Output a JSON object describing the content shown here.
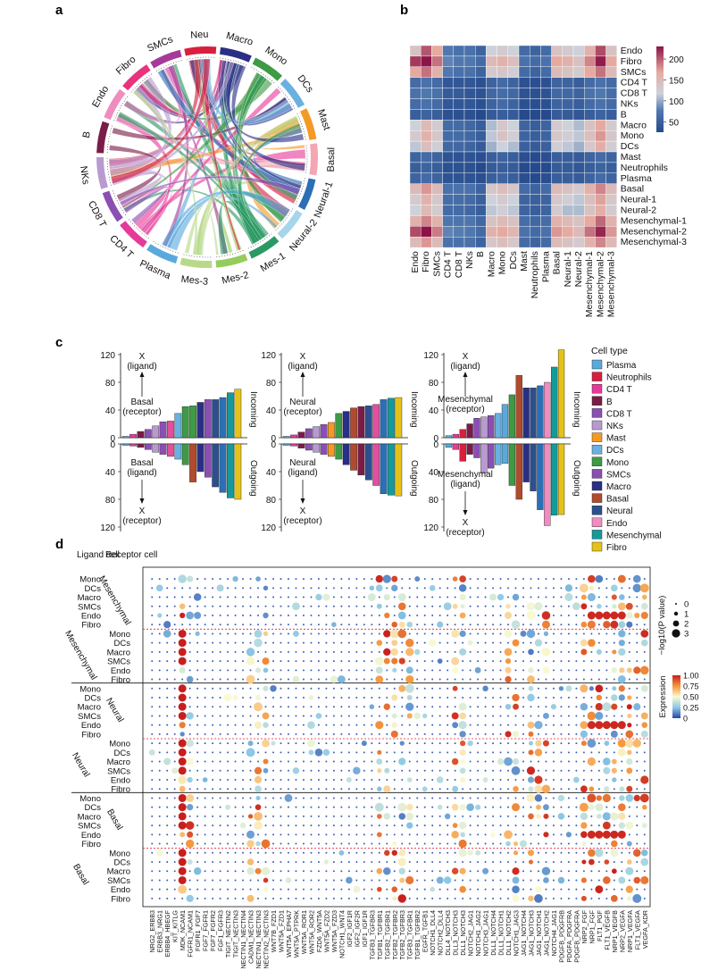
{
  "panels": {
    "a": "a",
    "b": "b",
    "c": "c",
    "d": "d"
  },
  "chart_data": [
    {
      "panel": "a",
      "type": "chord",
      "sectors": [
        "Neu",
        "Macro",
        "Mono",
        "DCs",
        "Mast",
        "Basal",
        "Neural-1",
        "Neural-2",
        "Mes-1",
        "Mes-2",
        "Mes-3",
        "Plasma",
        "CD4 T",
        "CD8 T",
        "NKs",
        "B",
        "Endo",
        "Fibro",
        "SMCs"
      ],
      "colors": [
        "#d81f3f",
        "#2a2f86",
        "#3d9a45",
        "#6ab0e0",
        "#f39a26",
        "#f4a6b2",
        "#2c6fb4",
        "#a6d5ec",
        "#2a9a62",
        "#96cc5c",
        "#b8d98a",
        "#5aa9dc",
        "#e63a9a",
        "#8a4fb3",
        "#b99ad0",
        "#7b1b48",
        "#ef8cc0",
        "#e9337c",
        "#a63a9a"
      ]
    },
    {
      "panel": "b",
      "type": "heatmap",
      "rows": [
        "Endo",
        "Fibro",
        "SMCs",
        "CD4 T",
        "CD8 T",
        "NKs",
        "B",
        "Macro",
        "Mono",
        "DCs",
        "Mast",
        "Neutrophils",
        "Plasma",
        "Basal",
        "Neural-1",
        "Neural-2",
        "Mesenchymal-1",
        "Mesenchymal-2",
        "Mesenchymal-3"
      ],
      "cols": [
        "Endo",
        "Fibro",
        "SMCs",
        "CD4 T",
        "CD8 T",
        "NKs",
        "B",
        "Macro",
        "Mono",
        "DCs",
        "Mast",
        "Neutrophils",
        "Plasma",
        "Basal",
        "Neural-1",
        "Neural-2",
        "Mesenchymal-1",
        "Mesenchymal-2",
        "Mesenchymal-3"
      ],
      "values": [
        [
          120,
          195,
          150,
          60,
          55,
          55,
          45,
          100,
          110,
          100,
          50,
          45,
          50,
          120,
          110,
          100,
          140,
          200,
          120
        ],
        [
          210,
          230,
          180,
          65,
          60,
          60,
          50,
          130,
          140,
          125,
          55,
          50,
          55,
          150,
          140,
          120,
          170,
          225,
          150
        ],
        [
          150,
          180,
          140,
          60,
          55,
          55,
          45,
          110,
          115,
          105,
          50,
          45,
          50,
          130,
          120,
          110,
          150,
          180,
          130
        ],
        [
          50,
          55,
          50,
          35,
          35,
          35,
          30,
          45,
          50,
          45,
          30,
          28,
          30,
          45,
          45,
          40,
          50,
          55,
          50
        ],
        [
          55,
          60,
          55,
          38,
          38,
          35,
          32,
          48,
          52,
          48,
          32,
          30,
          32,
          48,
          48,
          45,
          55,
          60,
          52
        ],
        [
          50,
          55,
          50,
          35,
          35,
          35,
          30,
          45,
          50,
          45,
          30,
          28,
          30,
          45,
          45,
          40,
          50,
          55,
          50
        ],
        [
          40,
          45,
          40,
          30,
          30,
          30,
          25,
          38,
          40,
          38,
          25,
          25,
          25,
          38,
          38,
          35,
          40,
          45,
          40
        ],
        [
          100,
          130,
          110,
          50,
          50,
          48,
          40,
          90,
          115,
          100,
          45,
          40,
          45,
          110,
          100,
          90,
          120,
          150,
          110
        ],
        [
          110,
          140,
          115,
          50,
          50,
          48,
          40,
          95,
          120,
          105,
          45,
          40,
          45,
          115,
          105,
          95,
          125,
          160,
          115
        ],
        [
          95,
          125,
          105,
          48,
          48,
          45,
          38,
          85,
          100,
          90,
          42,
          38,
          42,
          105,
          95,
          85,
          115,
          145,
          105
        ],
        [
          45,
          50,
          45,
          32,
          32,
          32,
          28,
          40,
          45,
          40,
          28,
          25,
          28,
          40,
          40,
          38,
          45,
          50,
          45
        ],
        [
          40,
          45,
          40,
          30,
          30,
          30,
          25,
          38,
          40,
          38,
          25,
          25,
          25,
          38,
          38,
          35,
          40,
          45,
          40
        ],
        [
          45,
          50,
          45,
          32,
          32,
          32,
          28,
          40,
          45,
          40,
          28,
          25,
          28,
          40,
          40,
          38,
          45,
          50,
          45
        ],
        [
          130,
          160,
          130,
          55,
          55,
          55,
          45,
          115,
          125,
          115,
          50,
          45,
          50,
          130,
          120,
          110,
          140,
          170,
          130
        ],
        [
          110,
          140,
          115,
          52,
          52,
          50,
          42,
          100,
          110,
          100,
          45,
          42,
          45,
          115,
          105,
          95,
          125,
          155,
          115
        ],
        [
          100,
          130,
          110,
          50,
          50,
          48,
          40,
          95,
          105,
          95,
          45,
          40,
          45,
          110,
          90,
          90,
          120,
          145,
          110
        ],
        [
          140,
          170,
          140,
          58,
          58,
          58,
          48,
          120,
          130,
          120,
          52,
          48,
          52,
          140,
          130,
          120,
          150,
          185,
          140
        ],
        [
          200,
          230,
          175,
          65,
          62,
          60,
          50,
          140,
          150,
          135,
          55,
          50,
          55,
          160,
          150,
          130,
          180,
          220,
          160
        ],
        [
          130,
          160,
          130,
          55,
          55,
          55,
          45,
          115,
          125,
          115,
          50,
          45,
          50,
          130,
          120,
          110,
          140,
          170,
          130
        ]
      ],
      "colorbar_ticks": [
        "200",
        "150",
        "100",
        "50"
      ],
      "range": [
        25,
        230
      ]
    },
    {
      "panel": "c",
      "type": "bar",
      "subplots": [
        {
          "name": "Basal",
          "incoming": [
            2,
            5,
            9,
            12,
            17,
            23,
            24,
            35,
            45,
            46,
            51,
            55,
            55,
            58,
            65,
            70
          ],
          "incoming_colors": [
            "#5aa9dc",
            "#e63a9a",
            "#7b1b48",
            "#8a4fb3",
            "#b99ad0",
            "#8a4fb3",
            "#e0509e",
            "#6ab0e0",
            "#3d9a45",
            "#3d9a45",
            "#2a2f86",
            "#8a4fb3",
            "#2c4f8f",
            "#2c6fb4",
            "#159a9a",
            "#e4c21a"
          ],
          "outgoing": [
            2,
            3,
            5,
            8,
            12,
            15,
            18,
            22,
            30,
            55,
            40,
            48,
            62,
            70,
            78,
            80
          ],
          "outgoing_colors": [
            "#5aa9dc",
            "#e63a9a",
            "#7b1b48",
            "#8a4fb3",
            "#b99ad0",
            "#8a4fb3",
            "#e0509e",
            "#6ab0e0",
            "#3d9a45",
            "#b04b2f",
            "#2a2f86",
            "#8a4fb3",
            "#2c4f8f",
            "#2c6fb4",
            "#159a9a",
            "#e4c21a"
          ]
        },
        {
          "name": "Neural",
          "incoming": [
            2,
            4,
            8,
            13,
            16,
            19,
            22,
            35,
            38,
            43,
            45,
            46,
            48,
            55,
            57,
            58
          ],
          "incoming_colors": [
            "#5aa9dc",
            "#e63a9a",
            "#7b1b48",
            "#8a4fb3",
            "#b99ad0",
            "#8a4fb3",
            "#f39a26",
            "#3d9a45",
            "#2a2f86",
            "#b04b2f",
            "#7b1b48",
            "#2c4f8f",
            "#e0509e",
            "#2c6fb4",
            "#159a9a",
            "#e4c21a"
          ],
          "outgoing": [
            2,
            3,
            6,
            9,
            12,
            15,
            18,
            22,
            30,
            38,
            45,
            52,
            60,
            72,
            74,
            75
          ],
          "outgoing_colors": [
            "#5aa9dc",
            "#e63a9a",
            "#7b1b48",
            "#8a4fb3",
            "#b99ad0",
            "#8a4fb3",
            "#f39a26",
            "#3d9a45",
            "#2a2f86",
            "#b04b2f",
            "#7b1b48",
            "#2c4f8f",
            "#e0509e",
            "#2c6fb4",
            "#159a9a",
            "#e4c21a"
          ]
        },
        {
          "name": "Mesenchymal",
          "incoming": [
            3,
            5,
            12,
            20,
            28,
            30,
            32,
            35,
            48,
            62,
            90,
            72,
            72,
            75,
            80,
            102,
            127
          ],
          "incoming_colors": [
            "#5aa9dc",
            "#e63a9a",
            "#d81f3f",
            "#7b1b48",
            "#8a4fb3",
            "#b99ad0",
            "#8a4fb3",
            "#6ab0e0",
            "#5aa9dc",
            "#3d9a45",
            "#b04b2f",
            "#2a2f86",
            "#2c4f8f",
            "#2c6fb4",
            "#ef8cc0",
            "#159a9a",
            "#e4c21a"
          ],
          "outgoing": [
            5,
            8,
            25,
            15,
            20,
            42,
            35,
            30,
            28,
            60,
            80,
            55,
            68,
            95,
            118,
            103,
            102
          ],
          "outgoing_colors": [
            "#5aa9dc",
            "#e63a9a",
            "#d81f3f",
            "#7b1b48",
            "#8a4fb3",
            "#b99ad0",
            "#8a4fb3",
            "#6ab0e0",
            "#5aa9dc",
            "#3d9a45",
            "#b04b2f",
            "#2a2f86",
            "#2c4f8f",
            "#2c6fb4",
            "#ef8cc0",
            "#159a9a",
            "#e4c21a"
          ]
        }
      ],
      "y_ticks_incoming": [
        "120",
        "80",
        "40",
        "0"
      ],
      "y_ticks_outgoing": [
        "0",
        "40",
        "80",
        "120"
      ],
      "incoming_label": "Incoming",
      "outgoing_label": "Outgoing",
      "ann_x_ligand": "X",
      "ann_ligand": "(ligand)",
      "ann_receptor": "(receptor)",
      "ann_basal": "Basal",
      "ann_neural": "Neural",
      "ann_mesenchymal": "Mesenchymal",
      "ann_x_receptor": "X",
      "ann_ligand2": "(ligand)",
      "legend_title": "Cell type",
      "legend": [
        {
          "name": "Plasma",
          "color": "#5aa9dc"
        },
        {
          "name": "Neutrophils",
          "color": "#d81f3f"
        },
        {
          "name": "CD4 T",
          "color": "#e63a9a"
        },
        {
          "name": "B",
          "color": "#7b1b48"
        },
        {
          "name": "CD8 T",
          "color": "#8a4fb3"
        },
        {
          "name": "NKs",
          "color": "#b99ad0"
        },
        {
          "name": "Mast",
          "color": "#f39a26"
        },
        {
          "name": "DCs",
          "color": "#6ab0e0"
        },
        {
          "name": "Mono",
          "color": "#3d9a45"
        },
        {
          "name": "SMCs",
          "color": "#8a4fb3"
        },
        {
          "name": "Macro",
          "color": "#2a2f86"
        },
        {
          "name": "Basal",
          "color": "#b04b2f"
        },
        {
          "name": "Neural",
          "color": "#2c4f8f"
        },
        {
          "name": "Endo",
          "color": "#ef8cc0"
        },
        {
          "name": "Mesenchymal",
          "color": "#159a9a"
        },
        {
          "name": "Fibro",
          "color": "#e4c21a"
        }
      ]
    },
    {
      "panel": "d",
      "type": "scatter",
      "header_ligand": "Ligand cell",
      "header_receptor": "Receptor cell",
      "row_labels": [
        "Mono",
        "DCs",
        "Macro",
        "SMCs",
        "Endo",
        "Fibro",
        "Mono",
        "DCs",
        "Macro",
        "SMCs",
        "Endo",
        "Fibro",
        "Mono",
        "DCs",
        "Macro",
        "SMCs",
        "Endo",
        "Fibro",
        "Mono",
        "DCs",
        "Macro",
        "SMCs",
        "Endo",
        "Fibro",
        "Mono",
        "DCs",
        "Macro",
        "SMCs",
        "Endo",
        "Fibro",
        "Mono",
        "DCs",
        "Macro",
        "SMCs",
        "Endo",
        "Fibro"
      ],
      "group_labels": [
        "Mesenchymal",
        "Mesenchymal",
        "Neural",
        "Neural",
        "Basal",
        "Basal"
      ],
      "columns": [
        "NRG2_ERBB3",
        "ERBB3_NRG1",
        "ERBB4_HBEGF",
        "KIT_KITLG",
        "MDK_NCAM1",
        "FGFR1_NCAM1",
        "FGFR1_FGF7",
        "FGF7_FGFR1",
        "FGF7_FGFR2",
        "FGF1_FGFR3",
        "TIGIT_NECTIN2",
        "TIGIT_NECTIN3",
        "NECTIN1_NECTIN4",
        "CADM1_NECTIN3",
        "NECTIN1_NECTIN3",
        "NECTIN2_NECTIN3",
        "WNT7B_FZD1",
        "WNT5A_FZD1",
        "WNT5A_EPHA7",
        "WNT5A_PTPRK",
        "WNT5A_ROR1",
        "WNT5A_ROR2",
        "FZD6_WNT5A",
        "WNT5A_FZD2",
        "WNT5A_FZD3",
        "NOTCH1_WNT4",
        "IGF2_IGF1R",
        "IGF2_IGF2R",
        "IGF1_IGF1R",
        "TGFB3_TGFBR3",
        "TGFB1_TGFBR1",
        "TGFB2_TGFBR1",
        "TGFB2_TGFBR2",
        "TGFB2_TGFBR3",
        "TGFB3_TGFBR1",
        "TGFB1_TGFBR2",
        "EGFR_TGFB1",
        "NOTCH1_DLL4",
        "NOTCH2_DLL4",
        "DLL4_NOTCH3",
        "DLL3_NOTCH3",
        "DLL1_NOTCH3",
        "NOTCH2_JAG1",
        "NOTCH1_JAG2",
        "NOTCH3_JAG1",
        "DLL1_NOTCH4",
        "DLL1_NOTCH1",
        "DLL1_NOTCH2",
        "NOTCH1_JAG3",
        "JAG1_NOTCH4",
        "JAG1_NOTCH3",
        "JAG1_NOTCH1",
        "JAG1_NOTCH2",
        "NOTCH4_JAG1",
        "PDGFB_PDGFRB",
        "PDGFA_PDGFRA",
        "PDGFB_PDGFRA",
        "NRP2_FGF",
        "NRP1_FGF",
        "FLT1_PGF",
        "FLT1_VEGFB",
        "NRP1_VEGFB",
        "NRP2_VEGFA",
        "NRP1_VEGFA",
        "FLT1_VEGFA",
        "VEGFA_KDR"
      ],
      "size_legend_title": "−log10(P value)",
      "size_legend": [
        "0",
        "1",
        "2",
        "3"
      ],
      "color_legend_title": "Expression",
      "color_legend": [
        "1.00",
        "0.75",
        "0.50",
        "0.25",
        "0"
      ]
    }
  ]
}
